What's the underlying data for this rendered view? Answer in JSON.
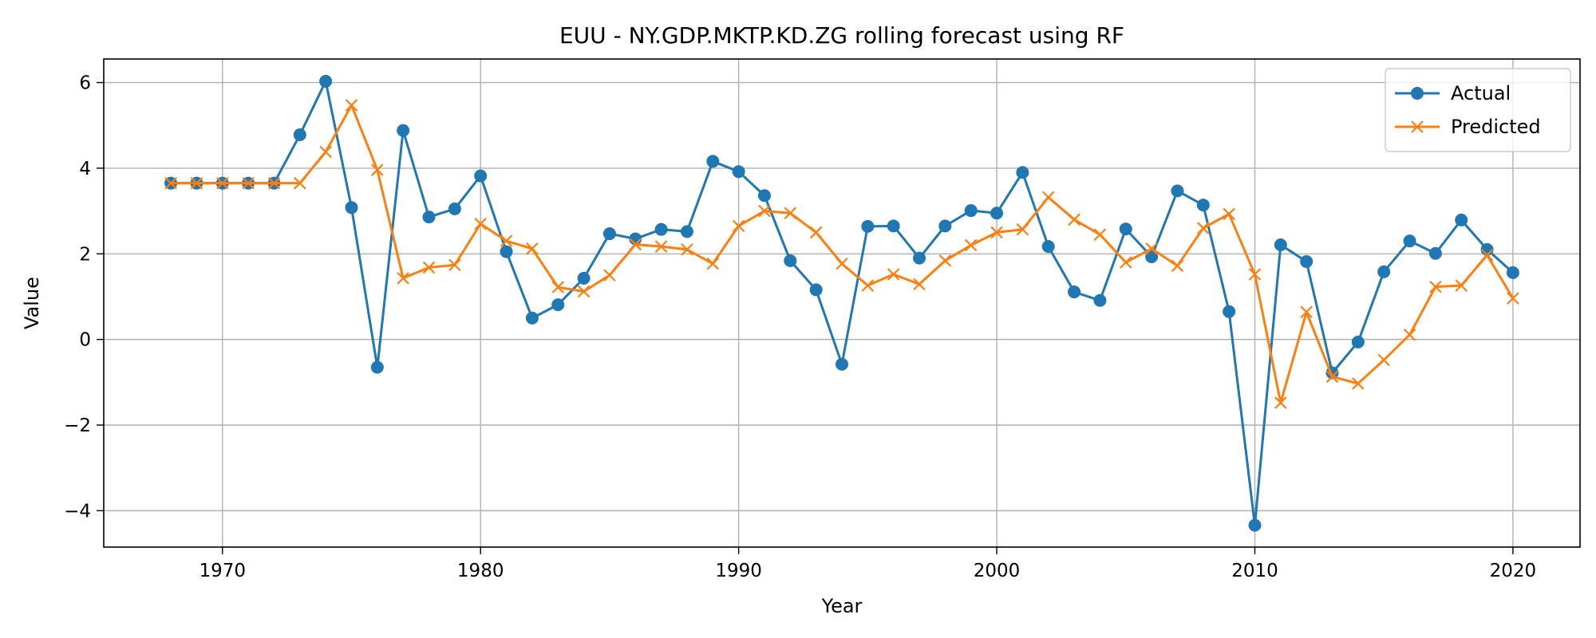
{
  "chart_data": {
    "type": "line",
    "title": "EUU - NY.GDP.MKTP.KD.ZG rolling forecast using RF",
    "xlabel": "Year",
    "ylabel": "Value",
    "xlim": [
      1965.4,
      2022.6
    ],
    "ylim": [
      -4.85,
      6.55
    ],
    "xticks": [
      1970,
      1980,
      1990,
      2000,
      2010,
      2020
    ],
    "yticks": [
      -4,
      -2,
      0,
      2,
      4,
      6
    ],
    "grid": true,
    "legend_position": "top-right",
    "x": [
      1968,
      1969,
      1970,
      1971,
      1972,
      1973,
      1974,
      1975,
      1976,
      1977,
      1978,
      1979,
      1980,
      1981,
      1982,
      1983,
      1984,
      1985,
      1986,
      1987,
      1988,
      1989,
      1990,
      1991,
      1992,
      1993,
      1994,
      1995,
      1996,
      1997,
      1998,
      1999,
      2000,
      2001,
      2002,
      2003,
      2004,
      2005,
      2006,
      2007,
      2008,
      2009,
      2010,
      2011,
      2012,
      2013,
      2014,
      2015,
      2016,
      2017,
      2018,
      2019,
      2020
    ],
    "series": [
      {
        "name": "Actual",
        "color": "#1f77b4",
        "marker": "circle",
        "values": [
          3.65,
          3.65,
          3.65,
          3.65,
          3.65,
          4.78,
          6.03,
          3.08,
          -0.65,
          4.88,
          2.86,
          3.05,
          3.82,
          2.05,
          0.5,
          0.81,
          1.43,
          2.47,
          2.35,
          2.57,
          2.52,
          4.16,
          3.92,
          3.36,
          1.84,
          1.16,
          -0.58,
          2.64,
          2.65,
          1.9,
          2.65,
          3.01,
          2.95,
          3.9,
          2.17,
          1.11,
          0.91,
          2.58,
          1.93,
          3.47,
          3.14,
          0.65,
          -4.34,
          2.21,
          1.82,
          -0.78,
          -0.06,
          1.58,
          2.3,
          2.01,
          2.79,
          2.1,
          1.56
        ]
      },
      {
        "name": "Predicted",
        "color": "#ff7f0e",
        "marker": "x",
        "values": [
          3.65,
          3.65,
          3.65,
          3.65,
          3.65,
          3.65,
          4.38,
          5.47,
          3.96,
          1.43,
          1.68,
          1.74,
          2.7,
          2.3,
          2.12,
          1.22,
          1.12,
          1.5,
          2.22,
          2.17,
          2.1,
          1.77,
          2.65,
          3.0,
          2.95,
          2.5,
          1.77,
          1.26,
          1.52,
          1.29,
          1.84,
          2.2,
          2.5,
          2.57,
          3.32,
          2.8,
          2.45,
          1.8,
          2.12,
          1.72,
          2.6,
          2.93,
          1.52,
          -1.48,
          0.64,
          -0.87,
          -1.03,
          -0.48,
          0.11,
          1.23,
          1.26,
          1.97,
          0.96
        ]
      }
    ]
  }
}
